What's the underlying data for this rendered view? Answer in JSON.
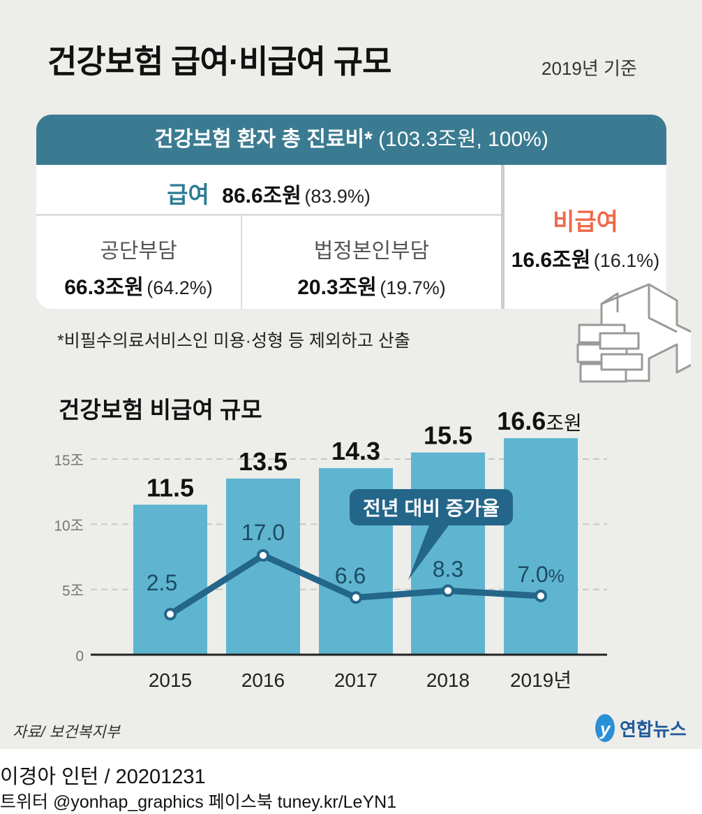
{
  "title": "건강보험 급여·비급여 규모",
  "basis": "2019년 기준",
  "table": {
    "header_main": "건강보험 환자 총 진료비*",
    "header_amount": "(103.3조원,",
    "header_pct": "100%)",
    "covered": {
      "label": "급여",
      "amount": "86.6조원",
      "pct": "(83.9%)",
      "color": "#2f7b93"
    },
    "corp": {
      "label": "공단부담",
      "amount": "66.3조원",
      "pct": "(64.2%)"
    },
    "self": {
      "label": "법정본인부담",
      "amount": "20.3조원",
      "pct": "(19.7%)"
    },
    "noncovered": {
      "label": "비급여",
      "amount": "16.6조원",
      "pct": "(16.1%)",
      "color": "#ee6a4a"
    },
    "header_color": "#3b7b91"
  },
  "note": "*비필수의료서비스인 미용·성형 등 제외하고 산출",
  "chart_title": "건강보험 비급여 규모",
  "chart_data": {
    "type": "bar",
    "categories": [
      "2015",
      "2016",
      "2017",
      "2018",
      "2019년"
    ],
    "series": [
      {
        "values": [
          11.5,
          13.5,
          14.3,
          15.5,
          16.6
        ],
        "labels": [
          "11.5",
          "13.5",
          "14.3",
          "15.5",
          "16.6"
        ],
        "unit": "조원",
        "color": "#5fb5cf"
      },
      {
        "name": "전년 대비 증가율",
        "type": "line",
        "values": [
          2.5,
          17.0,
          6.6,
          8.3,
          7.0
        ],
        "labels": [
          "2.5",
          "17.0",
          "6.6",
          "8.3",
          "7.0"
        ],
        "unit": "%",
        "color": "#24668a"
      }
    ],
    "yticks": [
      "0",
      "5조",
      "10조",
      "15조"
    ],
    "ytick_values": [
      0,
      5,
      10,
      15
    ],
    "ylim": [
      0,
      17
    ],
    "grid": true
  },
  "source": "자료/ 보건복지부",
  "logo": "연합뉴스",
  "credit_line1": "이경아 인턴 / 20201231",
  "credit_line2": "트위터 @yonhap_graphics  페이스북 tuney.kr/LeYN1"
}
